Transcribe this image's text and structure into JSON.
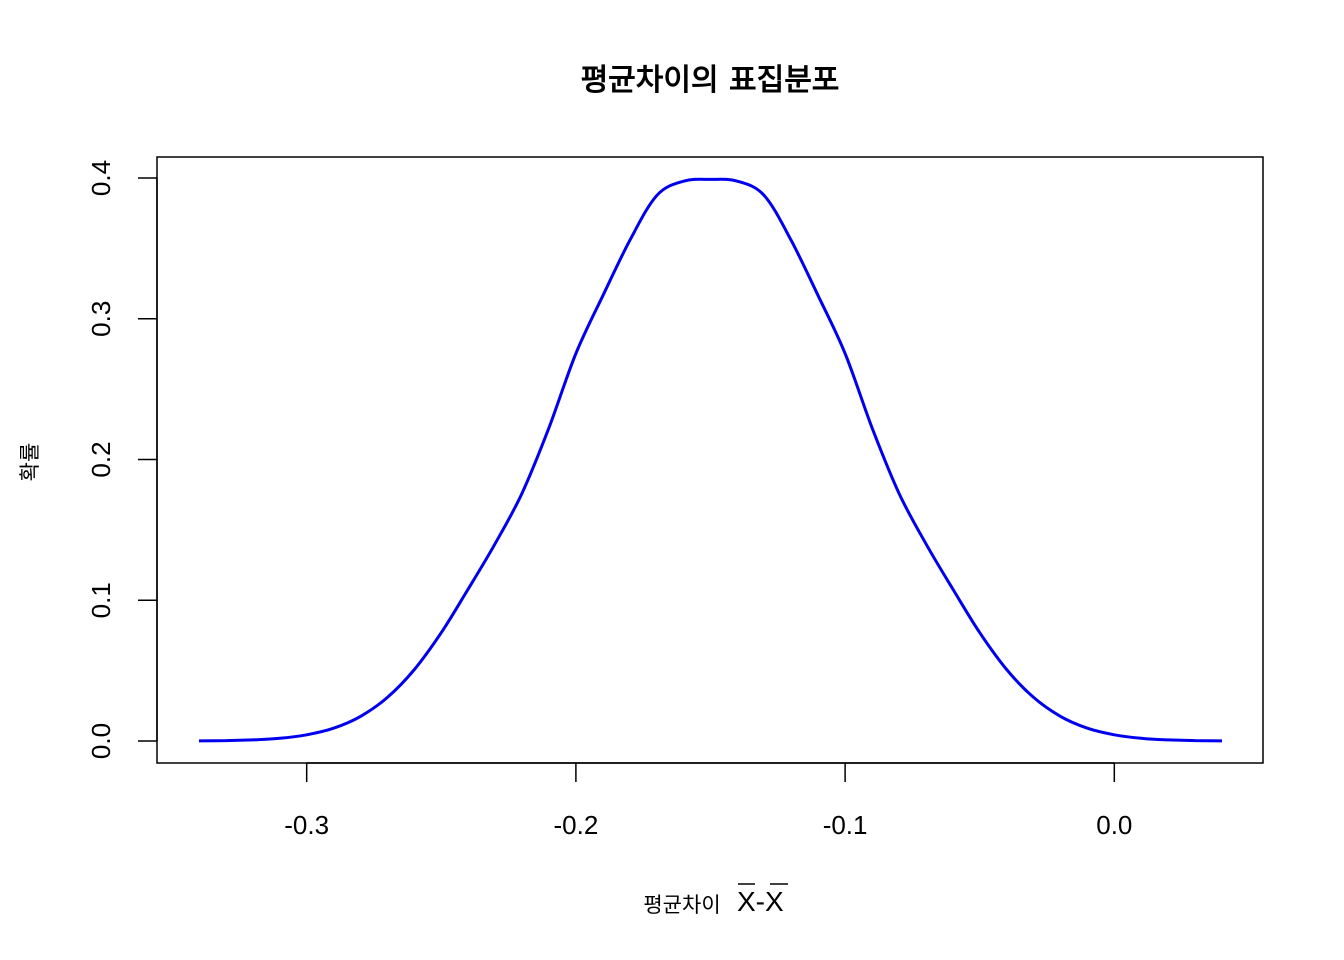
{
  "chart_data": {
    "type": "line",
    "title": "평균차이의 표집분포",
    "xlabel": "평균차이",
    "xlabel_math": "X-X",
    "ylabel": "확률",
    "xlim": [
      -0.34,
      0.04
    ],
    "ylim": [
      0.0,
      0.4
    ],
    "x_ticks": [
      -0.3,
      -0.2,
      -0.1,
      0.0
    ],
    "x_tick_labels": [
      "-0.3",
      "-0.2",
      "-0.1",
      "0.0"
    ],
    "y_ticks": [
      0.0,
      0.1,
      0.2,
      0.3,
      0.4
    ],
    "y_tick_labels": [
      "0.0",
      "0.1",
      "0.2",
      "0.3",
      "0.4"
    ],
    "grid": false,
    "legend": "none",
    "series": [
      {
        "color": "#0000ee",
        "x": [
          -0.34,
          -0.33,
          -0.32,
          -0.31,
          -0.3,
          -0.29,
          -0.28,
          -0.27,
          -0.26,
          -0.25,
          -0.24,
          -0.23,
          -0.22,
          -0.21,
          -0.2,
          -0.19,
          -0.18,
          -0.17,
          -0.16,
          -0.15,
          -0.14,
          -0.13,
          -0.12,
          -0.11,
          -0.1,
          -0.09,
          -0.08,
          -0.07,
          -0.06,
          -0.05,
          -0.04,
          -0.03,
          -0.02,
          -0.01,
          0.0,
          0.01,
          0.02,
          0.03,
          0.04
        ],
        "y": [
          0.0001,
          0.0003,
          0.0008,
          0.0019,
          0.0044,
          0.0091,
          0.0175,
          0.031,
          0.0508,
          0.077,
          0.108,
          0.1402,
          0.1761,
          0.2226,
          0.2753,
          0.3163,
          0.3555,
          0.3875,
          0.3977,
          0.399,
          0.3977,
          0.3875,
          0.3555,
          0.3163,
          0.2753,
          0.2226,
          0.1761,
          0.1402,
          0.108,
          0.077,
          0.0508,
          0.031,
          0.0175,
          0.0091,
          0.0044,
          0.0019,
          0.0008,
          0.0003,
          0.0001
        ]
      }
    ]
  }
}
